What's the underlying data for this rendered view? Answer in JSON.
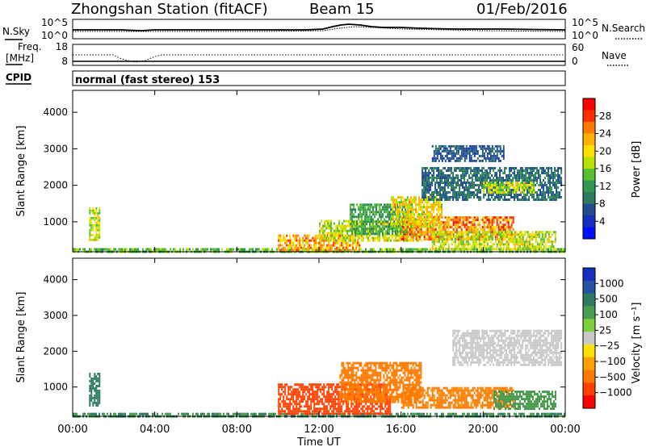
{
  "header": {
    "station": "Zhongshan Station (fitACF)",
    "beam": "Beam 15",
    "date": "01/Feb/2016"
  },
  "noise_panel": {
    "left_label": "N.Sky",
    "right_label": "N.Search",
    "left_ticks": [
      "10^5",
      "10^0"
    ],
    "right_ticks": [
      "10^5",
      "10^0"
    ]
  },
  "freq_panel": {
    "label_line1": "Freq.",
    "label_line2": "[MHz]",
    "left_ticks": [
      "18",
      "8"
    ],
    "right_label": "Nave",
    "right_ticks": [
      "60",
      "0"
    ]
  },
  "cpid": {
    "label": "CPID",
    "value": "normal (fast stereo) 153"
  },
  "axes": {
    "ylabel": "Slant Range [km]",
    "yticks": [
      "4000",
      "3000",
      "2000",
      "1000"
    ],
    "xticks": [
      "00:00",
      "04:00",
      "08:00",
      "12:00",
      "16:00",
      "20:00",
      "00:00"
    ],
    "xlabel": "Time UT"
  },
  "power_colorbar": {
    "label": "Power [dB]",
    "ticks": [
      "28",
      "24",
      "20",
      "16",
      "12",
      "8",
      "4"
    ],
    "colors": [
      "#ff0000",
      "#ff3000",
      "#ff7a00",
      "#ffb000",
      "#ffe000",
      "#b8e000",
      "#58c030",
      "#2f9a50",
      "#2f7a60",
      "#204c90",
      "#1530c0",
      "#0010ff"
    ]
  },
  "velocity_colorbar": {
    "label": "Velocity [m s⁻¹]",
    "ticks": [
      "1000",
      "500",
      "100",
      "25",
      "−25",
      "−100",
      "−500",
      "−1000"
    ],
    "colors": [
      "#1530c0",
      "#2555a0",
      "#2f7a60",
      "#4a9c50",
      "#7cd040",
      "#c8c8c8",
      "#ffe000",
      "#ffa000",
      "#ff7a00",
      "#ff4000",
      "#ff0000"
    ]
  },
  "chart_data": {
    "type": "heatmap",
    "x_range_hours": [
      0,
      24
    ],
    "y_range_km": [
      180,
      4600
    ],
    "power_regions": [
      {
        "t0": 0.0,
        "t1": 24.0,
        "r0": 180,
        "r1": 280,
        "value": 14
      },
      {
        "t0": 10.0,
        "t1": 14.0,
        "r0": 250,
        "r1": 650,
        "value": 24
      },
      {
        "t0": 12.0,
        "t1": 17.0,
        "r0": 500,
        "r1": 1050,
        "value": 18
      },
      {
        "t0": 13.5,
        "t1": 16.5,
        "r0": 700,
        "r1": 1500,
        "value": 12
      },
      {
        "t0": 16.0,
        "t1": 21.5,
        "r0": 550,
        "r1": 1150,
        "value": 26
      },
      {
        "t0": 17.5,
        "t1": 23.5,
        "r0": 250,
        "r1": 750,
        "value": 18
      },
      {
        "t0": 15.5,
        "t1": 18.0,
        "r0": 900,
        "r1": 1700,
        "value": 20
      },
      {
        "t0": 17.0,
        "t1": 23.8,
        "r0": 1600,
        "r1": 2500,
        "value": 8
      },
      {
        "t0": 20.0,
        "t1": 22.5,
        "r0": 1800,
        "r1": 2100,
        "value": 18
      },
      {
        "t0": 17.5,
        "t1": 21.0,
        "r0": 2700,
        "r1": 3100,
        "value": 6
      },
      {
        "t0": 0.8,
        "t1": 1.3,
        "r0": 500,
        "r1": 1400,
        "value": 18
      }
    ],
    "velocity_regions": [
      {
        "t0": 0.0,
        "t1": 24.0,
        "r0": 180,
        "r1": 280,
        "value": 100
      },
      {
        "t0": 10.0,
        "t1": 15.5,
        "r0": 250,
        "r1": 1100,
        "value": -450
      },
      {
        "t0": 13.0,
        "t1": 17.0,
        "r0": 600,
        "r1": 1700,
        "value": -180
      },
      {
        "t0": 16.0,
        "t1": 21.5,
        "r0": 400,
        "r1": 1000,
        "value": -120
      },
      {
        "t0": 20.5,
        "t1": 23.5,
        "r0": 400,
        "r1": 900,
        "value": 80
      },
      {
        "t0": 18.5,
        "t1": 23.8,
        "r0": 1600,
        "r1": 2600,
        "value": 5
      },
      {
        "t0": 0.8,
        "t1": 1.3,
        "r0": 500,
        "r1": 1400,
        "value": 250
      }
    ]
  }
}
